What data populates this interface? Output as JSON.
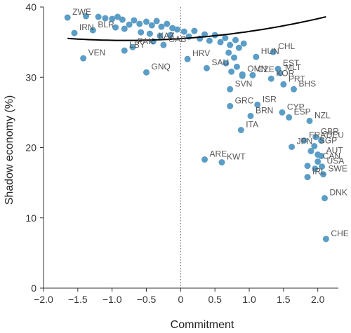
{
  "chart_data": {
    "type": "scatter",
    "xlabel": "Commitment",
    "ylabel": "Shadow economy (%)",
    "xlim": [
      -2.0,
      2.3
    ],
    "ylim": [
      0,
      40
    ],
    "xticks": [
      "−2.0",
      "−1.5",
      "−1.0",
      "−0.5",
      "0",
      "0.5",
      "1.0",
      "1.5",
      "2.0"
    ],
    "xtick_values": [
      -2.0,
      -1.5,
      -1.0,
      -0.5,
      0,
      0.5,
      1.0,
      1.5,
      2.0
    ],
    "yticks": [
      "0",
      "10",
      "20",
      "30",
      "40"
    ],
    "ytick_values": [
      0,
      10,
      20,
      30,
      40
    ],
    "point_color": "#5b9dc6",
    "curve_color": "#000000",
    "reference_line": {
      "x": 0,
      "style": "dotted"
    },
    "points": [
      {
        "label": "ZWE",
        "x": -1.65,
        "y": 38.5
      },
      {
        "label": "IRN",
        "x": -1.55,
        "y": 36.3
      },
      {
        "label": "VEN",
        "x": -1.42,
        "y": 32.7
      },
      {
        "label": "BLR",
        "x": -1.28,
        "y": 36.7
      },
      {
        "label": "",
        "x": -1.38,
        "y": 38.7
      },
      {
        "label": "",
        "x": -1.2,
        "y": 38.6
      },
      {
        "label": "",
        "x": -1.1,
        "y": 38.4
      },
      {
        "label": "",
        "x": -1.0,
        "y": 38.3
      },
      {
        "label": "",
        "x": -0.92,
        "y": 38.6
      },
      {
        "label": "",
        "x": -0.85,
        "y": 38.2
      },
      {
        "label": "",
        "x": -0.75,
        "y": 37.5
      },
      {
        "label": "",
        "x": -0.68,
        "y": 38.1
      },
      {
        "label": "",
        "x": -0.6,
        "y": 37.6
      },
      {
        "label": "",
        "x": -0.5,
        "y": 37.9
      },
      {
        "label": "",
        "x": -0.42,
        "y": 37.4
      },
      {
        "label": "",
        "x": -0.35,
        "y": 38.0
      },
      {
        "label": "",
        "x": -0.28,
        "y": 37.2
      },
      {
        "label": "",
        "x": -0.2,
        "y": 37.6
      },
      {
        "label": "",
        "x": -0.12,
        "y": 37.0
      },
      {
        "label": "",
        "x": -0.05,
        "y": 36.8
      },
      {
        "label": "",
        "x": -0.95,
        "y": 37.1
      },
      {
        "label": "",
        "x": -0.82,
        "y": 36.9
      },
      {
        "label": "",
        "x": -0.58,
        "y": 36.4
      },
      {
        "label": "",
        "x": -0.45,
        "y": 36.2
      },
      {
        "label": "",
        "x": -0.3,
        "y": 35.9
      },
      {
        "label": "",
        "x": -0.15,
        "y": 36.0
      },
      {
        "label": "",
        "x": 0.05,
        "y": 36.5
      },
      {
        "label": "",
        "x": 0.12,
        "y": 35.8
      },
      {
        "label": "",
        "x": 0.2,
        "y": 36.6
      },
      {
        "label": "",
        "x": 0.28,
        "y": 35.5
      },
      {
        "label": "",
        "x": 0.35,
        "y": 36.1
      },
      {
        "label": "",
        "x": 0.42,
        "y": 35.2
      },
      {
        "label": "",
        "x": 0.5,
        "y": 36.0
      },
      {
        "label": "",
        "x": 0.58,
        "y": 35.0
      },
      {
        "label": "",
        "x": 0.65,
        "y": 35.6
      },
      {
        "label": "",
        "x": 0.72,
        "y": 34.6
      },
      {
        "label": "",
        "x": 0.8,
        "y": 35.3
      },
      {
        "label": "",
        "x": 0.85,
        "y": 34.2
      },
      {
        "label": "",
        "x": 0.92,
        "y": 34.8
      },
      {
        "label": "",
        "x": 0.7,
        "y": 33.5
      },
      {
        "label": "",
        "x": 0.78,
        "y": 32.8
      },
      {
        "label": "",
        "x": 0.66,
        "y": 32.0
      },
      {
        "label": "",
        "x": 0.82,
        "y": 31.5
      },
      {
        "label": "",
        "x": 0.74,
        "y": 30.8
      },
      {
        "label": "",
        "x": 0.9,
        "y": 30.2
      },
      {
        "label": "LBY",
        "x": -0.82,
        "y": 33.8
      },
      {
        "label": "PAK",
        "x": -0.7,
        "y": 34.3
      },
      {
        "label": "KAZ",
        "x": -0.4,
        "y": 35.1
      },
      {
        "label": "GAB",
        "x": -0.25,
        "y": 34.6
      },
      {
        "label": "GNQ",
        "x": -0.5,
        "y": 30.7
      },
      {
        "label": "HRV",
        "x": 0.1,
        "y": 32.6
      },
      {
        "label": "SAU",
        "x": 0.38,
        "y": 31.3
      },
      {
        "label": "SVN",
        "x": 0.72,
        "y": 28.3
      },
      {
        "label": "GRC",
        "x": 0.72,
        "y": 25.9
      },
      {
        "label": "CHL",
        "x": 1.35,
        "y": 33.6
      },
      {
        "label": "HUN",
        "x": 1.1,
        "y": 32.9
      },
      {
        "label": "EST",
        "x": 1.42,
        "y": 31.2
      },
      {
        "label": "MLT",
        "x": 1.45,
        "y": 30.6
      },
      {
        "label": "KOR",
        "x": 1.32,
        "y": 29.8
      },
      {
        "label": "PRT",
        "x": 1.5,
        "y": 29.0
      },
      {
        "label": "BHS",
        "x": 1.65,
        "y": 28.3
      },
      {
        "label": "OMN",
        "x": 0.9,
        "y": 30.4
      },
      {
        "label": "CZE",
        "x": 1.05,
        "y": 30.3
      },
      {
        "label": "ISR",
        "x": 1.12,
        "y": 26.1
      },
      {
        "label": "CYP",
        "x": 1.48,
        "y": 25.0
      },
      {
        "label": "ESP",
        "x": 1.58,
        "y": 24.3
      },
      {
        "label": "BRN",
        "x": 1.02,
        "y": 24.5
      },
      {
        "label": "NZL",
        "x": 1.88,
        "y": 23.8
      },
      {
        "label": "ITA",
        "x": 0.88,
        "y": 22.5
      },
      {
        "label": "GBR",
        "x": 1.97,
        "y": 21.5
      },
      {
        "label": "DEU",
        "x": 2.05,
        "y": 21.0
      },
      {
        "label": "FRA",
        "x": 1.8,
        "y": 21.0
      },
      {
        "label": "JPN",
        "x": 1.62,
        "y": 20.1
      },
      {
        "label": "SGP",
        "x": 1.95,
        "y": 20.2
      },
      {
        "label": "",
        "x": 1.9,
        "y": 19.5
      },
      {
        "label": "",
        "x": 2.0,
        "y": 19.0
      },
      {
        "label": "AUT",
        "x": 2.05,
        "y": 18.8
      },
      {
        "label": "CAN",
        "x": 2.0,
        "y": 18.0
      },
      {
        "label": "",
        "x": 1.96,
        "y": 17.0
      },
      {
        "label": "USA",
        "x": 2.06,
        "y": 17.3
      },
      {
        "label": "SWE",
        "x": 2.08,
        "y": 16.2
      },
      {
        "label": "",
        "x": 1.85,
        "y": 17.4
      },
      {
        "label": "IRL",
        "x": 1.85,
        "y": 15.8
      },
      {
        "label": "ARE",
        "x": 0.35,
        "y": 18.3
      },
      {
        "label": "KWT",
        "x": 0.6,
        "y": 17.9
      },
      {
        "label": "DNK",
        "x": 2.1,
        "y": 12.8
      },
      {
        "label": "CHE",
        "x": 2.12,
        "y": 7.0
      }
    ],
    "fit_curve": {
      "type": "quadratic",
      "a": -3.94,
      "b": -6.3,
      "c": 35.5,
      "x_range": [
        -1.65,
        2.12
      ]
    }
  }
}
